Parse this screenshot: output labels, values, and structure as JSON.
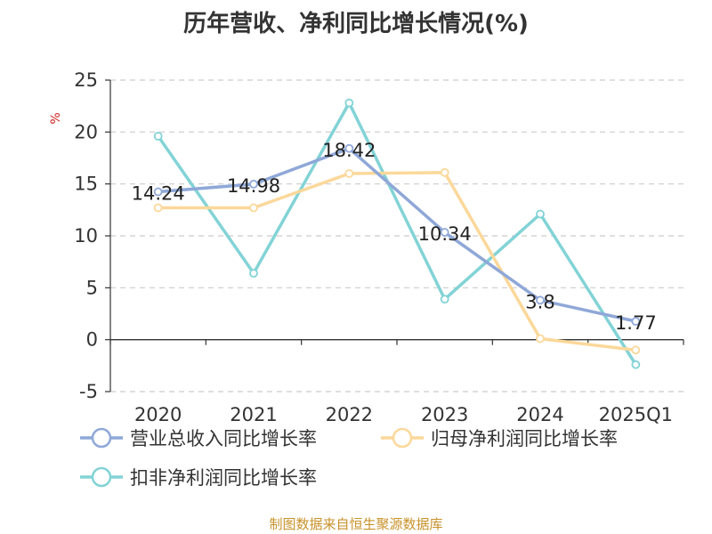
{
  "chart_data": {
    "type": "line",
    "title": "历年营收、净利同比增长情况(%)",
    "ylabel": "%",
    "categories": [
      "2020",
      "2021",
      "2022",
      "2023",
      "2024",
      "2025Q1"
    ],
    "ylim": [
      -5,
      25
    ],
    "yticks": [
      -5,
      0,
      5,
      10,
      15,
      20,
      25
    ],
    "grid": "horizontal-dashed",
    "legend_position": "bottom-left",
    "series": [
      {
        "name": "营业总收入同比增长率",
        "color": "#8fa8d8",
        "values": [
          14.24,
          14.98,
          18.42,
          10.34,
          3.8,
          1.77
        ],
        "data_labels": [
          "14.24",
          "14.98",
          "18.42",
          "10.34",
          "3.8",
          "1.77"
        ]
      },
      {
        "name": "归母净利润同比增长率",
        "color": "#fbd89a",
        "values": [
          12.7,
          12.7,
          16.0,
          16.1,
          0.1,
          -1.0
        ]
      },
      {
        "name": "扣非净利润同比增长率",
        "color": "#82d3d6",
        "values": [
          19.6,
          6.4,
          22.8,
          3.9,
          12.1,
          -2.4
        ]
      }
    ]
  },
  "footer": {
    "source": "制图数据来自恒生聚源数据库"
  }
}
